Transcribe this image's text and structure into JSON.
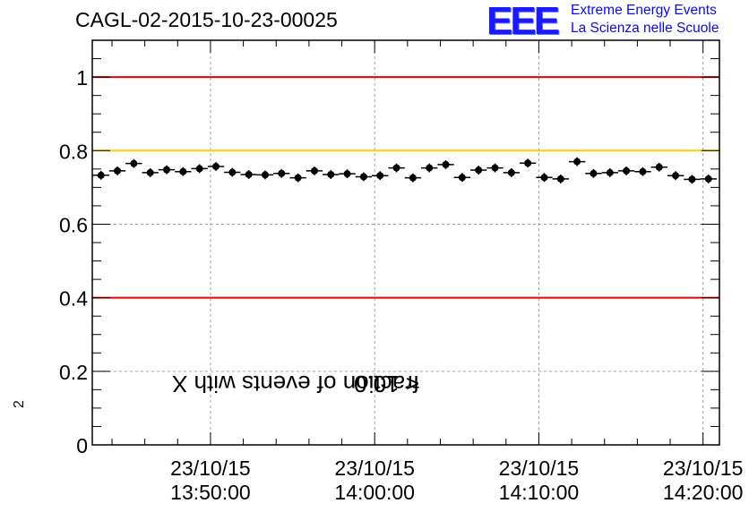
{
  "chart_data": {
    "type": "scatter",
    "title": "CAGL-02-2015-10-23-00025",
    "ylabel": "fraction of events with Χ² < 10.0",
    "ylabel_parts": {
      "prefix": "fraction of events with Χ",
      "sup": "2",
      "suffix": " < 10.0"
    },
    "xlabel": "",
    "ylim": [
      0,
      1.1
    ],
    "yticks": [
      0,
      0.2,
      0.4,
      0.6,
      0.8,
      1
    ],
    "ytick_labels": [
      "0",
      "0.2",
      "0.4",
      "0.6",
      "0.8",
      "1"
    ],
    "xlim_minutes": [
      -7.2,
      31.0
    ],
    "xtick_minutes": [
      0,
      10,
      20,
      30
    ],
    "xtick_labels": [
      [
        "23/10/15",
        "13:50:00"
      ],
      [
        "23/10/15",
        "14:00:00"
      ],
      [
        "23/10/15",
        "14:10:00"
      ],
      [
        "23/10/15",
        "14:20:00"
      ]
    ],
    "x_reference": "13:50:00",
    "grid": true,
    "reference_lines": [
      {
        "y": 1.0,
        "color": "#ee0000"
      },
      {
        "y": 0.8,
        "color": "#ffcc00"
      },
      {
        "y": 0.4,
        "color": "#ee0000"
      }
    ],
    "series": [
      {
        "name": "fraction",
        "color": "#000000",
        "x_minutes": [
          -6.67,
          -5.67,
          -4.67,
          -3.67,
          -2.67,
          -1.67,
          -0.67,
          0.33,
          1.33,
          2.33,
          3.33,
          4.33,
          5.33,
          6.33,
          7.33,
          8.33,
          9.33,
          10.33,
          11.33,
          12.33,
          13.33,
          14.33,
          15.33,
          16.33,
          17.33,
          18.33,
          19.33,
          20.33,
          21.33,
          22.33,
          23.33,
          24.33,
          25.33,
          26.33,
          27.33,
          28.33,
          29.33,
          30.33
        ],
        "values": [
          0.733,
          0.745,
          0.765,
          0.74,
          0.748,
          0.743,
          0.751,
          0.757,
          0.741,
          0.735,
          0.734,
          0.738,
          0.726,
          0.745,
          0.735,
          0.737,
          0.729,
          0.732,
          0.753,
          0.726,
          0.753,
          0.762,
          0.727,
          0.747,
          0.753,
          0.74,
          0.766,
          0.727,
          0.723,
          0.77,
          0.738,
          0.74,
          0.745,
          0.743,
          0.755,
          0.732,
          0.722,
          0.723
        ],
        "x_error_minutes": 0.5,
        "y_errors": 0.012
      }
    ]
  },
  "logo": {
    "text": "EEE",
    "line1": "Extreme Energy Events",
    "line2": "La Scienza nelle Scuole"
  }
}
